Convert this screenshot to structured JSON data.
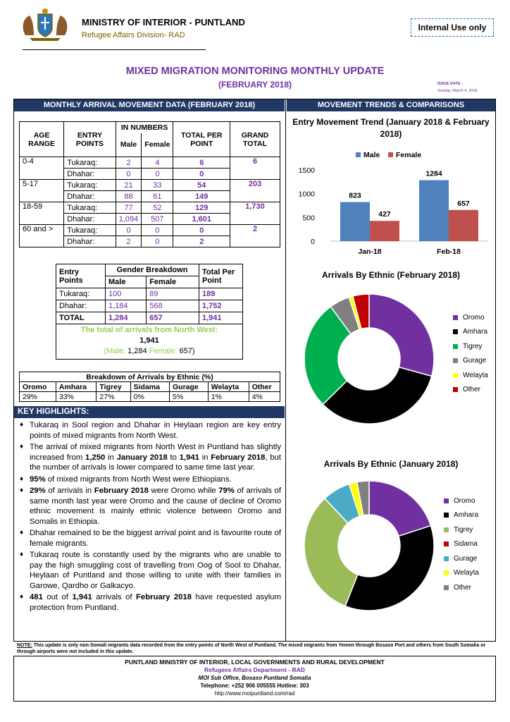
{
  "header": {
    "ministry": "MINISTRY OF INTERIOR - PUNTLAND",
    "division": "Refugee Affairs Division- RAD",
    "internal": "Internal Use only",
    "title": "MIXED MIGRATION MONITORING MONTHLY UPDATE",
    "subtitle": "(FEBRUARY 2018)",
    "issue_label": "ISSUE DATE :",
    "issue_date": "Sunday, March 4, 2018"
  },
  "left_heading": "MONTHLY ARRIVAL MOVEMENT DATA (FEBRUARY 2018)",
  "right_heading": "MOVEMENT TRENDS & COMPARISONS",
  "age_table": {
    "h_age": "AGE RANGE",
    "h_entry": "ENTRY POINTS",
    "h_numbers": "IN NUMBERS",
    "h_male": "Male",
    "h_female": "Female",
    "h_total": "TOTAL PER POINT",
    "h_grand": "GRAND TOTAL",
    "groups": [
      {
        "age": "0-4",
        "grand": "6",
        "rows": [
          {
            "point": "Tukaraq:",
            "male": "2",
            "female": "4",
            "total": "6"
          },
          {
            "point": "Dhahar:",
            "male": "0",
            "female": "0",
            "total": "0"
          }
        ]
      },
      {
        "age": "5-17",
        "grand": "203",
        "rows": [
          {
            "point": "Tukaraq:",
            "male": "21",
            "female": "33",
            "total": "54"
          },
          {
            "point": "Dhahar:",
            "male": "88",
            "female": "61",
            "total": "149"
          }
        ]
      },
      {
        "age": "18-59",
        "grand": "1,730",
        "rows": [
          {
            "point": "Tukaraq:",
            "male": "77",
            "female": "52",
            "total": "129"
          },
          {
            "point": "Dhahar:",
            "male": "1,094",
            "female": "507",
            "total": "1,601"
          }
        ]
      },
      {
        "age": "60 and >",
        "grand": "2",
        "rows": [
          {
            "point": "Tukaraq:",
            "male": "0",
            "female": "0",
            "total": "0"
          },
          {
            "point": "Dhahar:",
            "male": "2",
            "female": "0",
            "total": "2"
          }
        ]
      }
    ]
  },
  "gender_table": {
    "h_entry": "Entry Points",
    "h_gender": "Gender Breakdown",
    "h_total": "Total Per Point",
    "h_male": "Male",
    "h_female": "Female",
    "rows": [
      {
        "point": "Tukaraq:",
        "male": "100",
        "female": "89",
        "total": "189"
      },
      {
        "point": "Dhahar:",
        "male": "1,184",
        "female": "568",
        "total": "1,752"
      },
      {
        "point": "TOTAL",
        "male": "1,284",
        "female": "657",
        "total": "1,941"
      }
    ]
  },
  "north_west": {
    "title": "The total of arrivals from North West:",
    "total": "1,941",
    "male_label": "(Male:",
    "male": "1,284",
    "female_label": "Female:",
    "female": "657)"
  },
  "ethnic_table": {
    "caption": "Breakdown of Arrivals by Ethnic (%)",
    "headers": [
      "Oromo",
      "Amhara",
      "Tigrey",
      "Sidama",
      "Gurage",
      "Welayta",
      "Other"
    ],
    "values": [
      "29%",
      "33%",
      "27%",
      "0%",
      "5%",
      "1%",
      "4%"
    ]
  },
  "highlights_heading": "KEY HIGHLIGHTS:",
  "highlights": [
    "Tukaraq in Sool region and Dhahar in Heylaan region are key entry points of mixed migrants from North West.",
    "The arrival of mixed migrants from North West in Puntland has slightly increased from 1,250 in January 2018 to 1,941 in February 2018, but the number of arrivals is lower compared to same time last year.",
    "95% of mixed migrants from North West were Ethiopians.",
    "29% of arrivals in February 2018 were Oromo while 79% of arrivals of same month last year were Oromo and the cause of decline of Oromo ethnic movement is mainly ethnic violence between Oromo and Somalis in Ethiopia.",
    "Dhahar remained to be the biggest arrival point and is favourite route of female migrants.",
    "Tukaraq route is  constantly used by the migrants who are unable to pay the high smuggling cost of travelling from Oog of Sool to Dhahar, Heylaan of Puntland and those willing to unite with their families in Garowe, Qardho or Galkacyo.",
    "481 out of 1,941 arrivals of February 2018 have requested asylum protection from Puntland."
  ],
  "chart_data": [
    {
      "type": "bar",
      "title": "Entry Movement Trend (January 2018 & February 2018)",
      "categories": [
        "Jan-18",
        "Feb-18"
      ],
      "series": [
        {
          "name": "Male",
          "values": [
            823,
            1284
          ],
          "color": "#4f81bd"
        },
        {
          "name": "Female",
          "values": [
            427,
            657
          ],
          "color": "#c0504d"
        }
      ],
      "ylim": [
        0,
        1500
      ],
      "yticks": [
        0,
        500,
        1000,
        1500
      ],
      "legend": "top"
    },
    {
      "type": "pie",
      "title": "Arrivals By Ethnic (February 2018)",
      "labels": [
        "Oromo",
        "Amhara",
        "Tigrey",
        "Gurage",
        "Welayta",
        "Other"
      ],
      "values": [
        29,
        33,
        27,
        5,
        1,
        4
      ],
      "colors": [
        "#7030a0",
        "#000000",
        "#00b050",
        "#808080",
        "#ffff00",
        "#c00000"
      ],
      "legend": "right"
    },
    {
      "type": "pie",
      "title": "Arrivals By Ethnic (January 2018)",
      "labels": [
        "Oromo",
        "Amhara",
        "Tigrey",
        "Sidama",
        "Gurage",
        "Welayta",
        "Other"
      ],
      "values": [
        20,
        36,
        32,
        0,
        7,
        2,
        3
      ],
      "colors": [
        "#7030a0",
        "#000000",
        "#9bbb59",
        "#c00000",
        "#4bacc6",
        "#ffff00",
        "#808080"
      ],
      "legend": "right"
    }
  ],
  "note": {
    "label": "NOTE:",
    "text": " This update is only non-Somali migrants data recorded from the entry points of North West of Puntland. The mixed migrants from Yemen through Bosaso Port and others from South Somalia or through airports were not included in this update."
  },
  "footer": {
    "ministry": "PUNTLAND MINISTRY OF INTERIOR, LOCAL GOVERNMENTS AND RURAL DEVELOPMENT",
    "dept": "Refugees Affairs Department - RAD",
    "office": "MOI Sub Office, Bosaso Puntland Somalia",
    "tel": "Telephone: +252 906 005555 Hotline: 303",
    "url": "http://www.moipuntland.com/rad"
  }
}
